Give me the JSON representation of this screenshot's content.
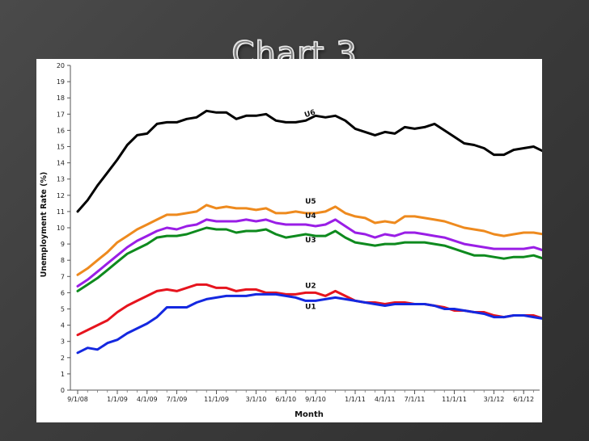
{
  "slide": {
    "title": "Chart 3"
  },
  "chart_data": {
    "type": "line",
    "title": "",
    "xlabel": "Month",
    "ylabel": "Unemployment Rate (%)",
    "ylim": [
      0,
      20
    ],
    "yticks": [
      0,
      1,
      2,
      3,
      4,
      5,
      6,
      7,
      8,
      9,
      10,
      11,
      12,
      13,
      14,
      15,
      16,
      17,
      18,
      19,
      20
    ],
    "xlim": [
      0,
      48
    ],
    "xticks": [
      {
        "x": 0,
        "label": "9/1/08"
      },
      {
        "x": 4,
        "label": "1/1/09"
      },
      {
        "x": 7,
        "label": "4/1/09"
      },
      {
        "x": 10,
        "label": "7/1/09"
      },
      {
        "x": 14,
        "label": "11/1/09"
      },
      {
        "x": 18,
        "label": "3/1/10"
      },
      {
        "x": 21,
        "label": "6/1/10"
      },
      {
        "x": 24,
        "label": "9/1/10"
      },
      {
        "x": 28,
        "label": "1/1/11"
      },
      {
        "x": 31,
        "label": "4/1/11"
      },
      {
        "x": 34,
        "label": "7/1/11"
      },
      {
        "x": 38,
        "label": "11/1/11"
      },
      {
        "x": 42,
        "label": "3/1/12"
      },
      {
        "x": 45,
        "label": "6/1/12"
      }
    ],
    "grid": false,
    "series": [
      {
        "name": "U6",
        "color": "#000000",
        "label_at": [
          23.5,
          16.9
        ],
        "values": [
          11.0,
          11.7,
          12.6,
          13.4,
          14.2,
          15.1,
          15.7,
          15.8,
          16.4,
          16.5,
          16.5,
          16.7,
          16.8,
          17.2,
          17.1,
          17.1,
          16.7,
          16.9,
          16.9,
          17.0,
          16.6,
          16.5,
          16.5,
          16.6,
          16.9,
          16.8,
          16.9,
          16.6,
          16.1,
          15.9,
          15.7,
          15.9,
          15.8,
          16.2,
          16.1,
          16.2,
          16.4,
          16.0,
          15.6,
          15.2,
          15.1,
          14.9,
          14.5,
          14.5,
          14.8,
          14.9,
          15.0,
          14.7
        ]
      },
      {
        "name": "U5",
        "color": "#ee8a1e",
        "label_at": [
          23.5,
          11.5
        ],
        "values": [
          7.1,
          7.5,
          8.0,
          8.5,
          9.1,
          9.5,
          9.9,
          10.2,
          10.5,
          10.8,
          10.8,
          10.9,
          11.0,
          11.4,
          11.2,
          11.3,
          11.2,
          11.2,
          11.1,
          11.2,
          10.9,
          10.9,
          11.0,
          10.9,
          10.9,
          11.0,
          11.3,
          10.9,
          10.7,
          10.6,
          10.3,
          10.4,
          10.3,
          10.7,
          10.7,
          10.6,
          10.5,
          10.4,
          10.2,
          10.0,
          9.9,
          9.8,
          9.6,
          9.5,
          9.6,
          9.7,
          9.7,
          9.6
        ]
      },
      {
        "name": "U4",
        "color": "#9a1ee6",
        "label_at": [
          23.5,
          10.6
        ],
        "values": [
          6.4,
          6.8,
          7.3,
          7.8,
          8.3,
          8.8,
          9.2,
          9.5,
          9.8,
          10.0,
          9.9,
          10.1,
          10.2,
          10.5,
          10.4,
          10.4,
          10.4,
          10.5,
          10.4,
          10.5,
          10.3,
          10.2,
          10.2,
          10.2,
          10.1,
          10.2,
          10.5,
          10.1,
          9.7,
          9.6,
          9.4,
          9.6,
          9.5,
          9.7,
          9.7,
          9.6,
          9.5,
          9.4,
          9.2,
          9.0,
          8.9,
          8.8,
          8.7,
          8.7,
          8.7,
          8.7,
          8.8,
          8.6
        ]
      },
      {
        "name": "U3",
        "color": "#0e8a1e",
        "label_at": [
          23.5,
          9.1
        ],
        "values": [
          6.1,
          6.5,
          6.9,
          7.4,
          7.9,
          8.4,
          8.7,
          9.0,
          9.4,
          9.5,
          9.5,
          9.6,
          9.8,
          10.0,
          9.9,
          9.9,
          9.7,
          9.8,
          9.8,
          9.9,
          9.6,
          9.4,
          9.5,
          9.6,
          9.5,
          9.5,
          9.8,
          9.4,
          9.1,
          9.0,
          8.9,
          9.0,
          9.0,
          9.1,
          9.1,
          9.1,
          9.0,
          8.9,
          8.7,
          8.5,
          8.3,
          8.3,
          8.2,
          8.1,
          8.2,
          8.2,
          8.3,
          8.1
        ]
      },
      {
        "name": "U2",
        "color": "#e6141e",
        "label_at": [
          23.5,
          6.3
        ],
        "values": [
          3.4,
          3.7,
          4.0,
          4.3,
          4.8,
          5.2,
          5.5,
          5.8,
          6.1,
          6.2,
          6.1,
          6.3,
          6.5,
          6.5,
          6.3,
          6.3,
          6.1,
          6.2,
          6.2,
          6.0,
          6.0,
          5.9,
          5.9,
          6.0,
          6.0,
          5.8,
          6.1,
          5.8,
          5.5,
          5.4,
          5.4,
          5.3,
          5.4,
          5.4,
          5.3,
          5.3,
          5.2,
          5.1,
          4.9,
          4.9,
          4.8,
          4.8,
          4.6,
          4.5,
          4.6,
          4.6,
          4.6,
          4.4
        ]
      },
      {
        "name": "U1",
        "color": "#1428e0",
        "label_at": [
          23.5,
          5.0
        ],
        "values": [
          2.3,
          2.6,
          2.5,
          2.9,
          3.1,
          3.5,
          3.8,
          4.1,
          4.5,
          5.1,
          5.1,
          5.1,
          5.4,
          5.6,
          5.7,
          5.8,
          5.8,
          5.8,
          5.9,
          5.9,
          5.9,
          5.8,
          5.7,
          5.5,
          5.5,
          5.6,
          5.7,
          5.6,
          5.5,
          5.4,
          5.3,
          5.2,
          5.3,
          5.3,
          5.3,
          5.3,
          5.2,
          5.0,
          5.0,
          4.9,
          4.8,
          4.7,
          4.5,
          4.5,
          4.6,
          4.6,
          4.5,
          4.4
        ]
      }
    ]
  }
}
